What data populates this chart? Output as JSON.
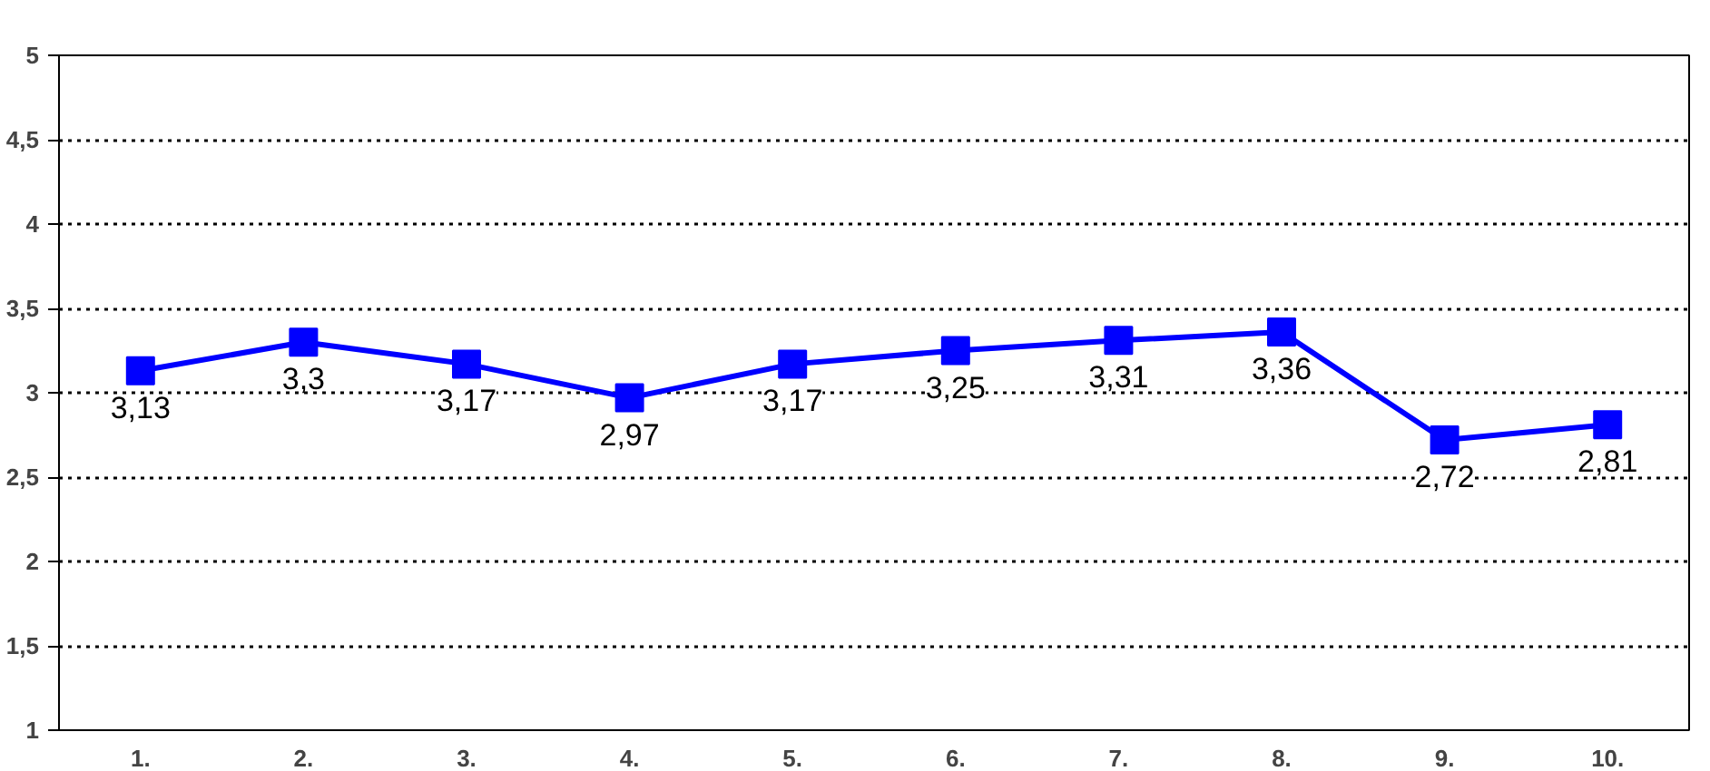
{
  "chart_data": {
    "type": "line",
    "categories": [
      "1.",
      "2.",
      "3.",
      "4.",
      "5.",
      "6.",
      "7.",
      "8.",
      "9.",
      "10."
    ],
    "series": [
      {
        "color": "#0000ff",
        "values": [
          3.13,
          3.3,
          3.17,
          2.97,
          3.17,
          3.25,
          3.31,
          3.36,
          2.72,
          2.81
        ],
        "value_labels": [
          "3,13",
          "3,3",
          "3,17",
          "2,97",
          "3,17",
          "3,25",
          "3,31",
          "3,36",
          "2,72",
          "2,81"
        ]
      }
    ],
    "ylim": [
      1,
      5
    ],
    "yticks": [
      1,
      {
        "value": 1.5,
        "label": "1,5"
      },
      2,
      {
        "value": 2.5,
        "label": "2,5"
      },
      3,
      {
        "value": 3.5,
        "label": "3,5"
      },
      4,
      {
        "value": 4.5,
        "label": "4,5"
      },
      5
    ],
    "grid": "y",
    "marker": "square",
    "line_style": "solid"
  }
}
